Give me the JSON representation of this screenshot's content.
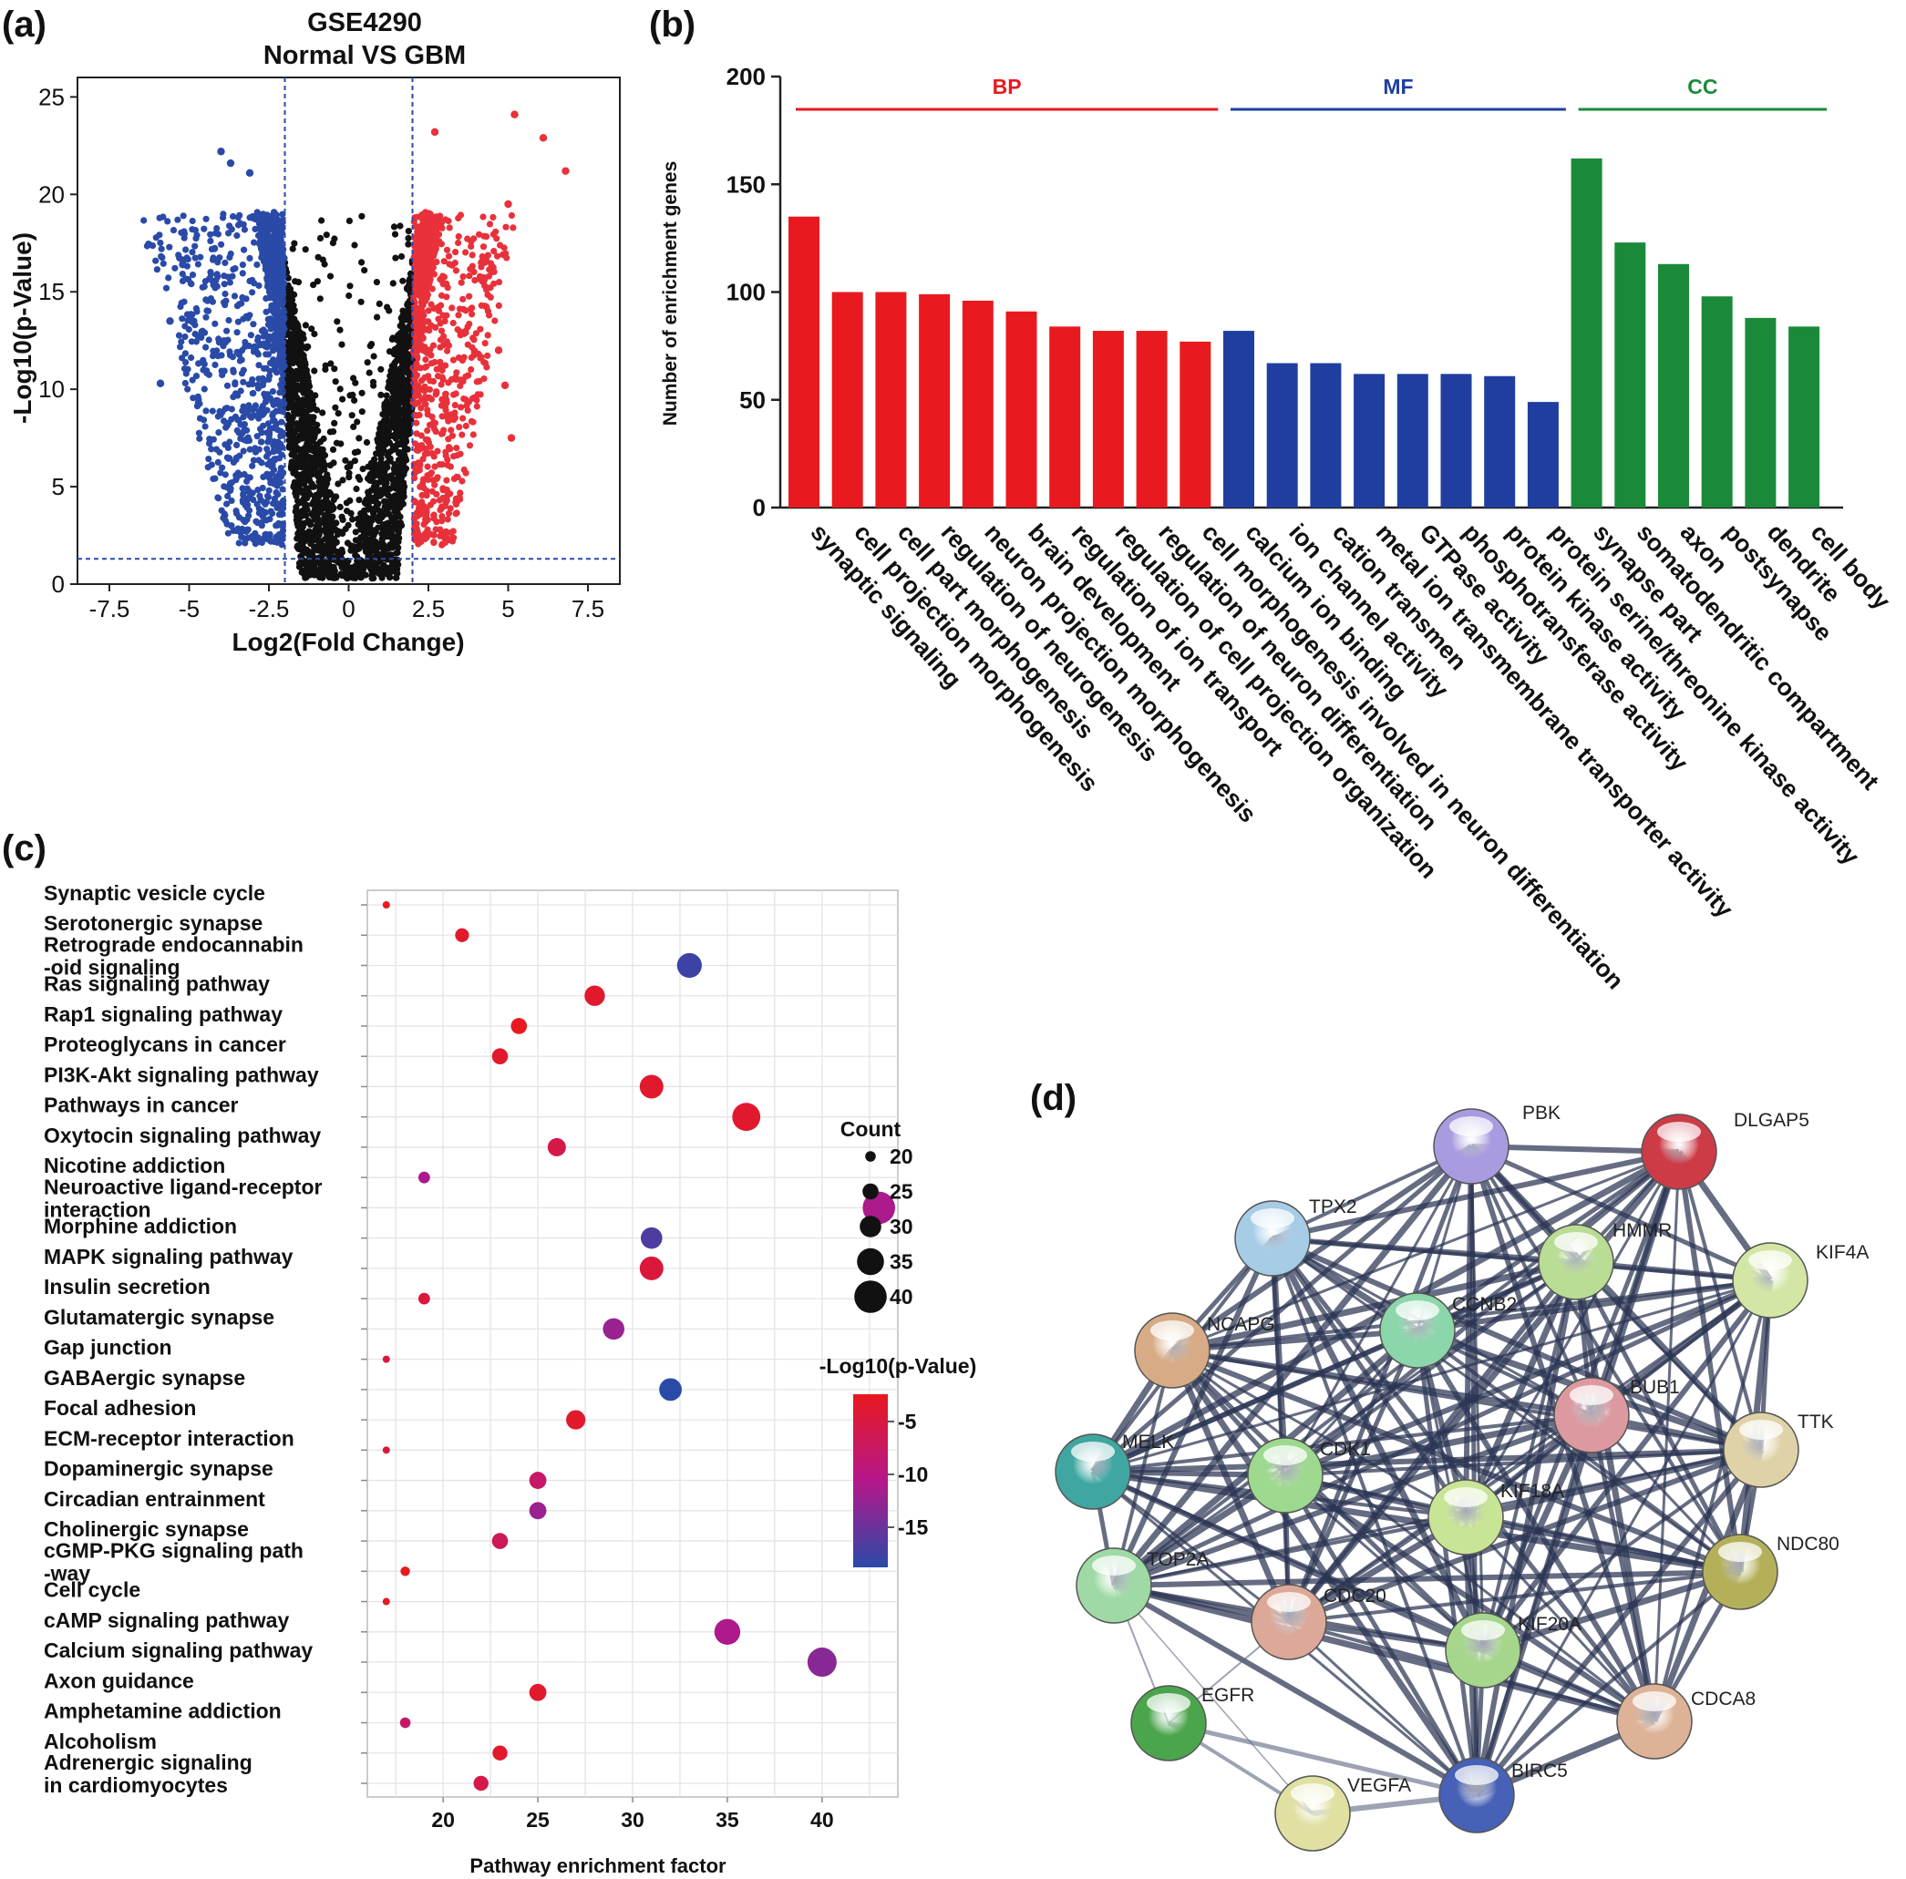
{
  "panels": {
    "a": {
      "label": "(a)",
      "chart_data": {
        "type": "scatter",
        "title_line1": "GSE4290",
        "title_line2": "Normal VS GBM",
        "xlabel": "Log2(Fold Change)",
        "ylabel": "-Log10(p-Value)",
        "xlim": [
          -8.5,
          8.5
        ],
        "ylim": [
          0,
          26
        ],
        "xticks": [
          -7.5,
          -5,
          -2.5,
          0,
          2.5,
          5,
          7.5
        ],
        "xtick_labels": [
          "-7.5",
          "-5",
          "-2.5",
          "0",
          "2.5",
          "5",
          "7.5"
        ],
        "yticks": [
          0,
          5,
          10,
          15,
          20,
          25
        ],
        "ytick_labels": [
          "0",
          "5",
          "10",
          "15",
          "20",
          "25"
        ],
        "fc_thresholds": [
          -2,
          2
        ],
        "p_threshold": 1.3,
        "colors": {
          "down": "#2a4aa8",
          "up": "#e8313a",
          "ns": "#111111",
          "threshold": "#2a4aa8"
        },
        "highlight_points": [
          {
            "x": 5.2,
            "y": 24.1,
            "group": "up"
          },
          {
            "x": 6.1,
            "y": 22.9,
            "group": "up"
          },
          {
            "x": 6.8,
            "y": 21.2,
            "group": "up"
          },
          {
            "x": 2.7,
            "y": 23.2,
            "group": "up"
          },
          {
            "x": 5.0,
            "y": 19.5,
            "group": "up"
          },
          {
            "x": 4.7,
            "y": 12.0,
            "group": "up"
          },
          {
            "x": 4.9,
            "y": 10.2,
            "group": "up"
          },
          {
            "x": 5.1,
            "y": 7.5,
            "group": "up"
          },
          {
            "x": -4.0,
            "y": 22.2,
            "group": "down"
          },
          {
            "x": -3.7,
            "y": 21.6,
            "group": "down"
          },
          {
            "x": -3.1,
            "y": 21.1,
            "group": "down"
          },
          {
            "x": -5.9,
            "y": 10.3,
            "group": "down"
          },
          {
            "x": -5.6,
            "y": 13.5,
            "group": "down"
          },
          {
            "x": -5.2,
            "y": 16.4,
            "group": "down"
          }
        ]
      }
    },
    "b": {
      "label": "(b)",
      "chart_data": {
        "type": "bar",
        "ylabel": "Number of enrichment genes",
        "ylim": [
          0,
          200
        ],
        "yticks": [
          0,
          50,
          100,
          150,
          200
        ],
        "ytick_labels": [
          "0",
          "50",
          "100",
          "150",
          "200"
        ],
        "groups": [
          {
            "name": "BP",
            "color": "#e8191f",
            "start": 0,
            "end": 9
          },
          {
            "name": "MF",
            "color": "#1f3ea0",
            "start": 10,
            "end": 17
          },
          {
            "name": "CC",
            "color": "#1a8a3a",
            "start": 18,
            "end": 23
          }
        ],
        "categories": [
          "synaptic signaling",
          "cell projection morphogenesis",
          "cell part morphogenesis",
          "regulation of neurogenesis",
          "neuron projection morphogenesis",
          "brain development",
          "regulation of ion transport",
          "regulation of cell projection organization",
          "regulation of neuron differentiation",
          "cell morphogenesis involved in neuron differentiation",
          "calcium ion binding",
          "ion channel activity",
          "cation transmen",
          "metal ion transmembrane transporter activity",
          "GTPase activity",
          "phosphotransferase activity",
          "protein kinase activity",
          "protein serine/threonine kinase activity",
          "synapse part",
          "somatodendritic compartment",
          "axon",
          "postsynapse",
          "dendrite",
          "cell body"
        ],
        "values": [
          135,
          100,
          100,
          99,
          96,
          91,
          84,
          82,
          82,
          77,
          82,
          67,
          67,
          62,
          62,
          62,
          61,
          49,
          162,
          123,
          113,
          98,
          88,
          84
        ]
      }
    },
    "c": {
      "label": "(c)",
      "chart_data": {
        "type": "scatter",
        "xlabel": "Pathway enrichment factor",
        "xlim": [
          16,
          44
        ],
        "xticks": [
          20,
          25,
          30,
          35,
          40
        ],
        "xtick_labels": [
          "20",
          "25",
          "30",
          "35",
          "40"
        ],
        "size_legend_title": "Count",
        "size_legend_values": [
          20,
          25,
          30,
          35,
          40
        ],
        "size_legend_labels": [
          "20",
          "25",
          "30",
          "35",
          "40"
        ],
        "color_legend_title": "-Log10(p-Value)",
        "color_legend_labels": [
          "-5",
          "-10",
          "-15"
        ],
        "color_scale": [
          "#e8191f",
          "#b5178a",
          "#2a4aa8"
        ],
        "pathways": [
          {
            "lines": [
              "Synaptic vesicle cycle"
            ],
            "x": 17,
            "count": 17,
            "logp": 3
          },
          {
            "lines": [
              "Serotonergic synapse"
            ],
            "x": 21,
            "count": 23,
            "logp": 4
          },
          {
            "lines": [
              "Retrograde endocannabin",
              "-oid signaling"
            ],
            "x": 33,
            "count": 33,
            "logp": 17
          },
          {
            "lines": [
              "Ras signaling pathway"
            ],
            "x": 28,
            "count": 29,
            "logp": 4
          },
          {
            "lines": [
              "Rap1 signaling pathway"
            ],
            "x": 24,
            "count": 25,
            "logp": 3
          },
          {
            "lines": [
              "Proteoglycans in cancer"
            ],
            "x": 23,
            "count": 25,
            "logp": 4
          },
          {
            "lines": [
              "PI3K-Akt signaling pathway"
            ],
            "x": 31,
            "count": 32,
            "logp": 4
          },
          {
            "lines": [
              "Pathways in cancer"
            ],
            "x": 36,
            "count": 36,
            "logp": 4
          },
          {
            "lines": [
              "Oxytocin signaling pathway"
            ],
            "x": 26,
            "count": 27,
            "logp": 6
          },
          {
            "lines": [
              "Nicotine addiction"
            ],
            "x": 19,
            "count": 21,
            "logp": 11
          },
          {
            "lines": [
              "Neuroactive ligand-receptor",
              "interaction"
            ],
            "x": 43,
            "count": 40,
            "logp": 11
          },
          {
            "lines": [
              "Morphine addiction"
            ],
            "x": 31,
            "count": 30,
            "logp": 16
          },
          {
            "lines": [
              "MAPK signaling pathway"
            ],
            "x": 31,
            "count": 32,
            "logp": 5
          },
          {
            "lines": [
              "Insulin secretion"
            ],
            "x": 19,
            "count": 21,
            "logp": 5
          },
          {
            "lines": [
              "Glutamatergic synapse"
            ],
            "x": 29,
            "count": 30,
            "logp": 12
          },
          {
            "lines": [
              "Gap junction"
            ],
            "x": 17,
            "count": 17,
            "logp": 5
          },
          {
            "lines": [
              "GABAergic synapse"
            ],
            "x": 32,
            "count": 31,
            "logp": 18
          },
          {
            "lines": [
              "Focal adhesion"
            ],
            "x": 27,
            "count": 28,
            "logp": 4
          },
          {
            "lines": [
              "ECM-receptor interaction"
            ],
            "x": 17,
            "count": 17,
            "logp": 5
          },
          {
            "lines": [
              "Dopaminergic synapse"
            ],
            "x": 25,
            "count": 26,
            "logp": 8
          },
          {
            "lines": [
              "Circadian entrainment"
            ],
            "x": 25,
            "count": 26,
            "logp": 12
          },
          {
            "lines": [
              "Cholinergic synapse"
            ],
            "x": 23,
            "count": 25,
            "logp": 7
          },
          {
            "lines": [
              "cGMP-PKG signaling path",
              "-way"
            ],
            "x": 18,
            "count": 19,
            "logp": 3
          },
          {
            "lines": [
              "Cell cycle"
            ],
            "x": 17,
            "count": 17,
            "logp": 3
          },
          {
            "lines": [
              "cAMP signaling pathway"
            ],
            "x": 35,
            "count": 34,
            "logp": 11
          },
          {
            "lines": [
              "Calcium signaling pathway"
            ],
            "x": 40,
            "count": 37,
            "logp": 13
          },
          {
            "lines": [
              "Axon guidance"
            ],
            "x": 25,
            "count": 26,
            "logp": 4
          },
          {
            "lines": [
              "Amphetamine addiction"
            ],
            "x": 18,
            "count": 20,
            "logp": 8
          },
          {
            "lines": [
              "Alcoholism"
            ],
            "x": 23,
            "count": 24,
            "logp": 4
          },
          {
            "lines": [
              "Adrenergic signaling",
              "in cardiomyocytes"
            ],
            "x": 22,
            "count": 24,
            "logp": 6
          }
        ]
      }
    },
    "d": {
      "label": "(d)",
      "nodes": [
        {
          "name": "PBK",
          "color": "#a99be0"
        },
        {
          "name": "DLGAP5",
          "color": "#cc3b46"
        },
        {
          "name": "TPX2",
          "color": "#a6cce6"
        },
        {
          "name": "HMMR",
          "color": "#b9dd95"
        },
        {
          "name": "KIF4A",
          "color": "#d3e6a5"
        },
        {
          "name": "CCNB2",
          "color": "#8bd6aa"
        },
        {
          "name": "NCAPG",
          "color": "#d6ab85"
        },
        {
          "name": "BUB1",
          "color": "#dc9aa0"
        },
        {
          "name": "TTK",
          "color": "#dfd2a8"
        },
        {
          "name": "MELK",
          "color": "#3fa6a1"
        },
        {
          "name": "CDK1",
          "color": "#9dd98e"
        },
        {
          "name": "KIF18A",
          "color": "#c8e495"
        },
        {
          "name": "NDC80",
          "color": "#b4b05a"
        },
        {
          "name": "TOP2A",
          "color": "#9fd9a6"
        },
        {
          "name": "CDC20",
          "color": "#dca898"
        },
        {
          "name": "KIF20A",
          "color": "#a5d68c"
        },
        {
          "name": "CDCA8",
          "color": "#ddb296"
        },
        {
          "name": "EGFR",
          "color": "#4ba54d"
        },
        {
          "name": "VEGFA",
          "color": "#dfe0a2"
        },
        {
          "name": "BIRC5",
          "color": "#4661b6"
        }
      ]
    }
  }
}
